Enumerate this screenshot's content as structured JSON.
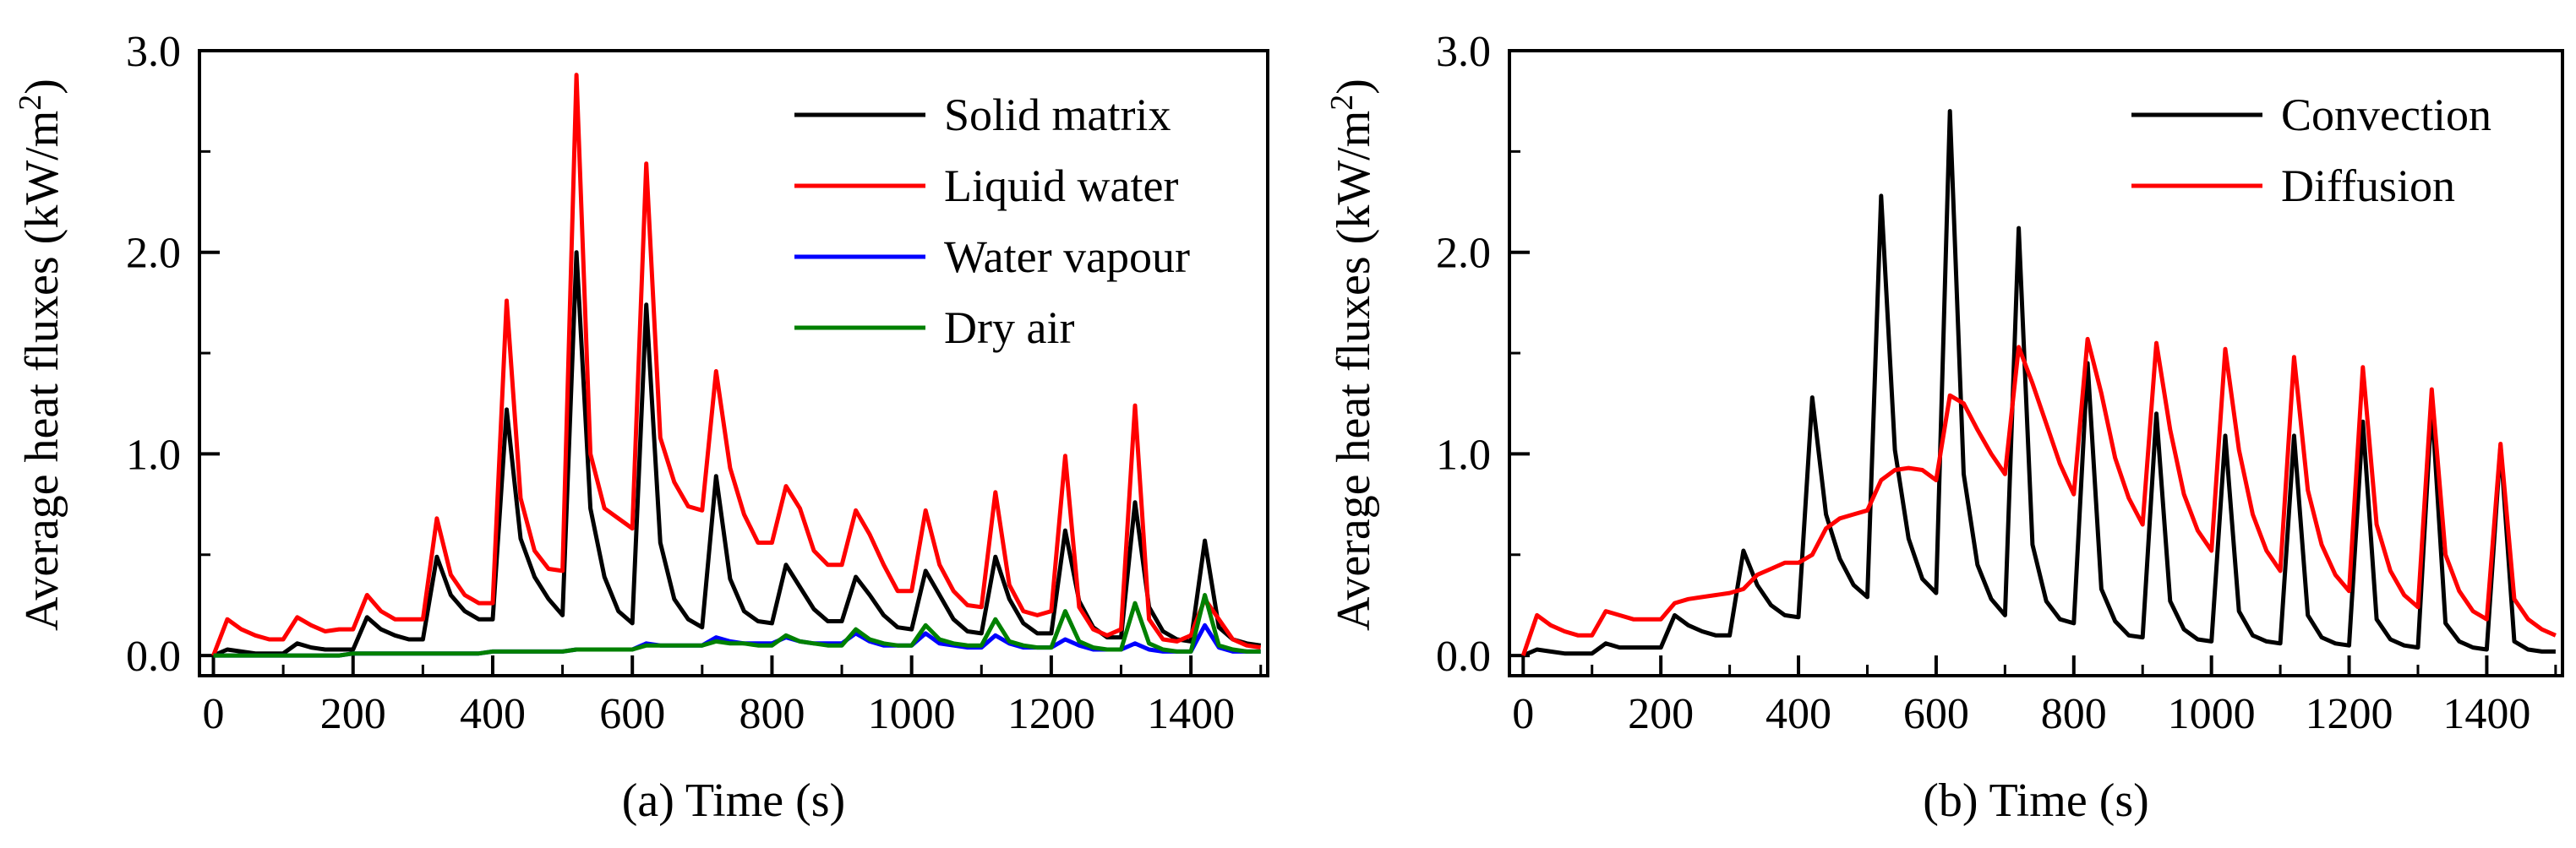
{
  "chart_data": [
    {
      "type": "line",
      "xlabel": "(a) Time (s)",
      "ylabel": "Average heat fluxes  (kW/m",
      "ylabel_sup": "2",
      "ylabel_close": ")",
      "xlim": [
        -20,
        1510
      ],
      "ylim": [
        -0.1,
        3.0
      ],
      "xticks": [
        0,
        200,
        400,
        600,
        800,
        1000,
        1200,
        1400
      ],
      "yticks": [
        0.0,
        1.0,
        2.0,
        3.0
      ],
      "ytick_labels": [
        "0.0",
        "1.0",
        "2.0",
        "3.0"
      ],
      "x": [
        0,
        20,
        40,
        60,
        80,
        100,
        120,
        140,
        160,
        180,
        200,
        220,
        240,
        260,
        280,
        300,
        320,
        340,
        360,
        380,
        400,
        420,
        440,
        460,
        480,
        500,
        520,
        540,
        560,
        580,
        600,
        620,
        640,
        660,
        680,
        700,
        720,
        740,
        760,
        780,
        800,
        820,
        840,
        860,
        880,
        900,
        920,
        940,
        960,
        980,
        1000,
        1020,
        1040,
        1060,
        1080,
        1100,
        1120,
        1140,
        1160,
        1180,
        1200,
        1220,
        1240,
        1260,
        1280,
        1300,
        1320,
        1340,
        1360,
        1380,
        1400,
        1420,
        1440,
        1460,
        1480,
        1500
      ],
      "series": [
        {
          "name": "Solid matrix",
          "color": "#000000",
          "values": [
            0.0,
            0.03,
            0.02,
            0.01,
            0.01,
            0.01,
            0.06,
            0.04,
            0.03,
            0.03,
            0.03,
            0.19,
            0.13,
            0.1,
            0.08,
            0.08,
            0.49,
            0.3,
            0.22,
            0.18,
            0.18,
            1.22,
            0.58,
            0.39,
            0.28,
            0.2,
            2.0,
            0.73,
            0.39,
            0.22,
            0.16,
            1.74,
            0.56,
            0.28,
            0.18,
            0.14,
            0.89,
            0.38,
            0.22,
            0.17,
            0.16,
            0.45,
            0.34,
            0.23,
            0.17,
            0.17,
            0.39,
            0.3,
            0.2,
            0.14,
            0.13,
            0.42,
            0.3,
            0.18,
            0.12,
            0.11,
            0.49,
            0.28,
            0.16,
            0.11,
            0.11,
            0.62,
            0.27,
            0.14,
            0.09,
            0.09,
            0.76,
            0.24,
            0.12,
            0.08,
            0.07,
            0.57,
            0.14,
            0.08,
            0.06,
            0.05
          ]
        },
        {
          "name": "Liquid water",
          "color": "#ff0000",
          "values": [
            0.0,
            0.18,
            0.13,
            0.1,
            0.08,
            0.08,
            0.19,
            0.15,
            0.12,
            0.13,
            0.13,
            0.3,
            0.22,
            0.18,
            0.18,
            0.18,
            0.68,
            0.4,
            0.3,
            0.26,
            0.26,
            1.76,
            0.78,
            0.52,
            0.43,
            0.42,
            2.88,
            1.0,
            0.73,
            0.68,
            0.63,
            2.44,
            1.08,
            0.86,
            0.74,
            0.72,
            1.41,
            0.93,
            0.7,
            0.56,
            0.56,
            0.84,
            0.73,
            0.52,
            0.45,
            0.45,
            0.72,
            0.6,
            0.45,
            0.32,
            0.32,
            0.72,
            0.45,
            0.32,
            0.25,
            0.24,
            0.81,
            0.35,
            0.22,
            0.2,
            0.22,
            0.99,
            0.24,
            0.13,
            0.1,
            0.13,
            1.24,
            0.18,
            0.08,
            0.07,
            0.1,
            0.28,
            0.18,
            0.08,
            0.05,
            0.04
          ]
        },
        {
          "name": "Water vapour",
          "color": "#0000ff",
          "values": [
            0.0,
            0.0,
            0.0,
            0.0,
            0.0,
            0.0,
            0.0,
            0.0,
            0.0,
            0.0,
            0.01,
            0.01,
            0.01,
            0.01,
            0.01,
            0.01,
            0.01,
            0.01,
            0.01,
            0.01,
            0.02,
            0.02,
            0.02,
            0.02,
            0.02,
            0.02,
            0.03,
            0.03,
            0.03,
            0.03,
            0.03,
            0.06,
            0.05,
            0.05,
            0.05,
            0.05,
            0.09,
            0.07,
            0.06,
            0.06,
            0.06,
            0.09,
            0.07,
            0.06,
            0.06,
            0.06,
            0.11,
            0.07,
            0.05,
            0.05,
            0.05,
            0.11,
            0.06,
            0.05,
            0.04,
            0.04,
            0.1,
            0.06,
            0.04,
            0.04,
            0.04,
            0.08,
            0.05,
            0.03,
            0.03,
            0.03,
            0.06,
            0.03,
            0.02,
            0.02,
            0.02,
            0.15,
            0.04,
            0.02,
            0.02,
            0.02
          ]
        },
        {
          "name": "Dry air",
          "color": "#008000",
          "values": [
            0.0,
            0.0,
            0.0,
            0.0,
            0.0,
            0.0,
            0.0,
            0.0,
            0.0,
            0.0,
            0.01,
            0.01,
            0.01,
            0.01,
            0.01,
            0.01,
            0.01,
            0.01,
            0.01,
            0.01,
            0.02,
            0.02,
            0.02,
            0.02,
            0.02,
            0.02,
            0.03,
            0.03,
            0.03,
            0.03,
            0.03,
            0.05,
            0.05,
            0.05,
            0.05,
            0.05,
            0.07,
            0.06,
            0.06,
            0.05,
            0.05,
            0.1,
            0.07,
            0.06,
            0.05,
            0.05,
            0.13,
            0.08,
            0.06,
            0.05,
            0.05,
            0.15,
            0.08,
            0.06,
            0.05,
            0.05,
            0.18,
            0.07,
            0.05,
            0.04,
            0.04,
            0.22,
            0.07,
            0.04,
            0.03,
            0.03,
            0.26,
            0.06,
            0.03,
            0.02,
            0.02,
            0.3,
            0.05,
            0.03,
            0.02,
            0.02
          ]
        }
      ]
    },
    {
      "type": "line",
      "xlabel": "(b) Time (s)",
      "ylabel": "Average heat fluxes  (kW/m",
      "ylabel_sup": "2",
      "ylabel_close": ")",
      "xlim": [
        -20,
        1510
      ],
      "ylim": [
        -0.1,
        3.0
      ],
      "xticks": [
        0,
        200,
        400,
        600,
        800,
        1000,
        1200,
        1400
      ],
      "yticks": [
        0.0,
        1.0,
        2.0,
        3.0
      ],
      "ytick_labels": [
        "0.0",
        "1.0",
        "2.0",
        "3.0"
      ],
      "x": [
        0,
        20,
        40,
        60,
        80,
        100,
        120,
        140,
        160,
        180,
        200,
        220,
        240,
        260,
        280,
        300,
        320,
        340,
        360,
        380,
        400,
        420,
        440,
        460,
        480,
        500,
        520,
        540,
        560,
        580,
        600,
        620,
        640,
        660,
        680,
        700,
        720,
        740,
        760,
        780,
        800,
        820,
        840,
        860,
        880,
        900,
        920,
        940,
        960,
        980,
        1000,
        1020,
        1040,
        1060,
        1080,
        1100,
        1120,
        1140,
        1160,
        1180,
        1200,
        1220,
        1240,
        1260,
        1280,
        1300,
        1320,
        1340,
        1360,
        1380,
        1400,
        1420,
        1440,
        1460,
        1480,
        1500
      ],
      "series": [
        {
          "name": "Convection",
          "color": "#000000",
          "values": [
            0.0,
            0.03,
            0.02,
            0.01,
            0.01,
            0.01,
            0.06,
            0.04,
            0.04,
            0.04,
            0.04,
            0.2,
            0.15,
            0.12,
            0.1,
            0.1,
            0.52,
            0.35,
            0.25,
            0.2,
            0.19,
            1.28,
            0.7,
            0.48,
            0.35,
            0.29,
            2.28,
            1.02,
            0.58,
            0.38,
            0.31,
            2.7,
            0.9,
            0.45,
            0.28,
            0.2,
            2.12,
            0.55,
            0.27,
            0.18,
            0.16,
            1.45,
            0.33,
            0.17,
            0.1,
            0.09,
            1.2,
            0.27,
            0.13,
            0.08,
            0.07,
            1.09,
            0.22,
            0.1,
            0.07,
            0.06,
            1.09,
            0.2,
            0.09,
            0.06,
            0.05,
            1.16,
            0.18,
            0.08,
            0.05,
            0.04,
            1.25,
            0.16,
            0.07,
            0.04,
            0.03,
            1.04,
            0.07,
            0.03,
            0.02,
            0.02
          ]
        },
        {
          "name": "Diffusion",
          "color": "#ff0000",
          "values": [
            0.0,
            0.2,
            0.15,
            0.12,
            0.1,
            0.1,
            0.22,
            0.2,
            0.18,
            0.18,
            0.18,
            0.26,
            0.28,
            0.29,
            0.3,
            0.31,
            0.33,
            0.4,
            0.43,
            0.46,
            0.46,
            0.5,
            0.63,
            0.68,
            0.7,
            0.72,
            0.87,
            0.92,
            0.93,
            0.92,
            0.87,
            1.29,
            1.25,
            1.12,
            1.0,
            0.9,
            1.53,
            1.35,
            1.15,
            0.95,
            0.8,
            1.57,
            1.3,
            0.98,
            0.78,
            0.65,
            1.55,
            1.12,
            0.8,
            0.62,
            0.52,
            1.52,
            1.02,
            0.7,
            0.52,
            0.42,
            1.48,
            0.82,
            0.55,
            0.4,
            0.32,
            1.43,
            0.65,
            0.42,
            0.3,
            0.24,
            1.32,
            0.5,
            0.32,
            0.22,
            0.18,
            1.05,
            0.28,
            0.18,
            0.13,
            0.1
          ]
        }
      ]
    }
  ]
}
